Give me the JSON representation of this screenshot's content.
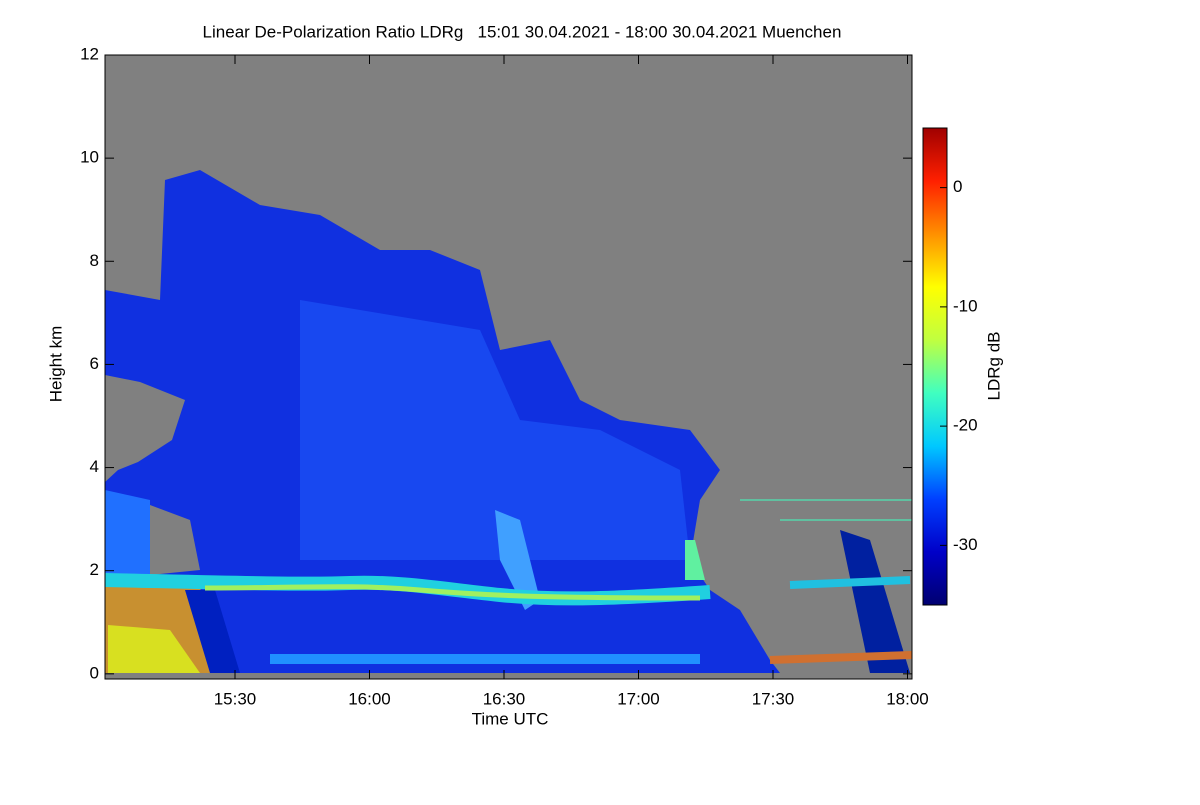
{
  "chart_data": {
    "type": "heatmap",
    "title": "Linear De-Polarization Ratio LDRg   15:01 30.04.2021 - 18:00 30.04.2021 Muenchen",
    "x_label": "Time UTC",
    "y_label": "Height km",
    "colorbar_label": "LDRg dB",
    "xlim": [
      15.0167,
      18.0167
    ],
    "xticks": [
      {
        "value": 15.5,
        "label": "15:30"
      },
      {
        "value": 16,
        "label": "16:00"
      },
      {
        "value": 16.5,
        "label": "16:30"
      },
      {
        "value": 17,
        "label": "17:00"
      },
      {
        "value": 17.5,
        "label": "17:30"
      },
      {
        "value": 18,
        "label": "18:00"
      }
    ],
    "ylim": [
      -0.1,
      12
    ],
    "yticks": [
      0,
      2,
      4,
      6,
      8,
      10,
      12
    ],
    "clim": [
      -35,
      5
    ],
    "cticks": [
      -30,
      -20,
      -10,
      0
    ],
    "colormap": [
      "#000070",
      "#0000c8",
      "#0040ff",
      "#00c8ff",
      "#40ffc0",
      "#c0ff40",
      "#ffff00",
      "#ff9000",
      "#ff2000",
      "#a00000"
    ],
    "missing_color": "#808080"
  }
}
